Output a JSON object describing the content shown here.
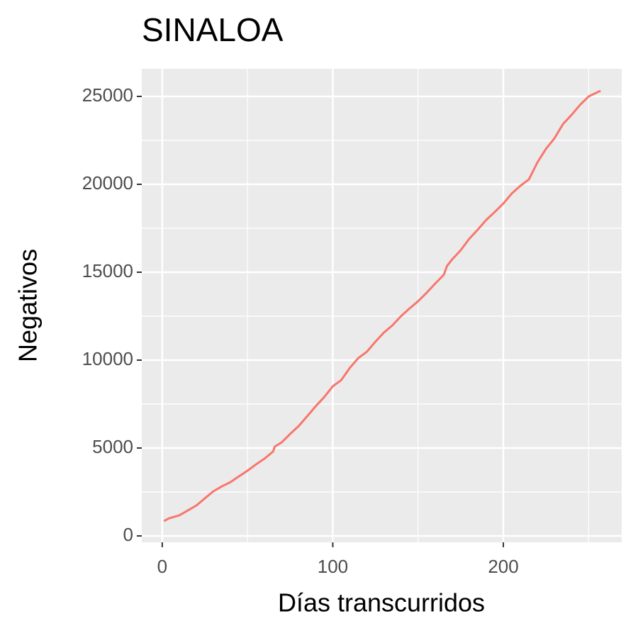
{
  "chart_data": {
    "type": "line",
    "title": "SINALOA",
    "x_label": "Días transcurridos",
    "y_label": "Negativos",
    "xlim": [
      -12,
      269.4
    ],
    "ylim": [
      -363,
      26573
    ],
    "xticks": [
      0,
      100,
      200
    ],
    "yticks": [
      0,
      5000,
      10000,
      15000,
      20000,
      25000
    ],
    "grid": true,
    "minor_grid": true,
    "series": [
      {
        "name": "Negativos",
        "color": "#F8766D",
        "x": [
          1,
          4,
          10,
          15,
          20,
          25,
          30,
          35,
          40,
          45,
          50,
          55,
          60,
          65,
          66,
          70,
          75,
          80,
          85,
          90,
          95,
          100,
          105,
          110,
          115,
          120,
          125,
          130,
          135,
          140,
          145,
          150,
          155,
          160,
          165,
          167,
          170,
          175,
          180,
          185,
          190,
          195,
          200,
          205,
          210,
          215,
          220,
          225,
          230,
          235,
          240,
          245,
          250,
          257
        ],
        "values": [
          850,
          1000,
          1170,
          1450,
          1730,
          2140,
          2540,
          2820,
          3060,
          3390,
          3710,
          4070,
          4400,
          4800,
          5080,
          5320,
          5800,
          6250,
          6810,
          7380,
          7900,
          8510,
          8870,
          9560,
          10120,
          10480,
          11050,
          11570,
          11980,
          12500,
          12940,
          13350,
          13830,
          14350,
          14840,
          15360,
          15730,
          16250,
          16900,
          17420,
          17980,
          18430,
          18910,
          19480,
          19920,
          20280,
          21250,
          22020,
          22620,
          23430,
          23950,
          24520,
          25000,
          25320
        ]
      }
    ]
  }
}
